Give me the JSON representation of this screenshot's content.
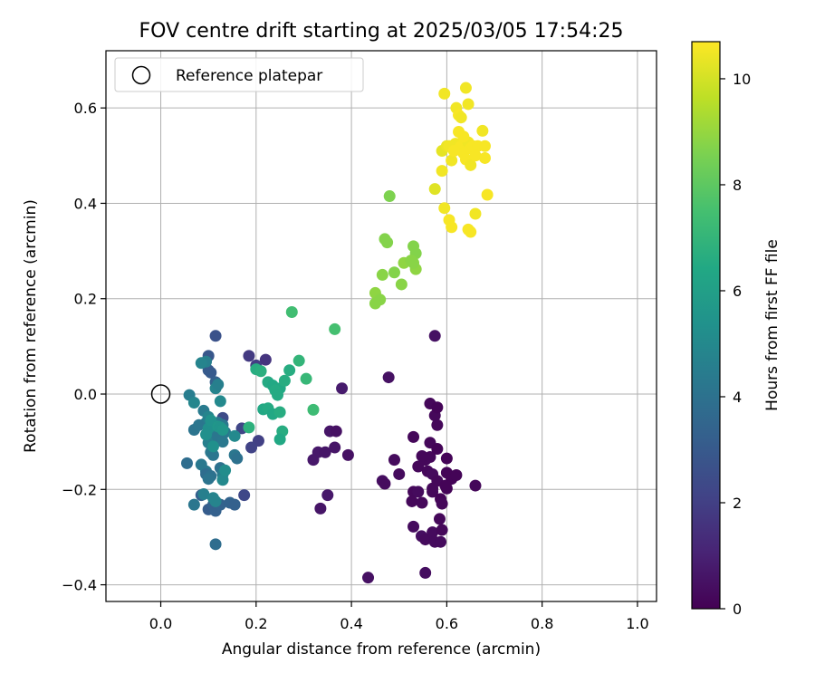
{
  "chart_data": {
    "type": "scatter",
    "title": "FOV centre drift starting at 2025/03/05 17:54:25",
    "xlabel": "Angular distance from reference (arcmin)",
    "ylabel": "Rotation from reference (arcmin)",
    "xlim": [
      -0.115,
      1.04
    ],
    "ylim": [
      -0.435,
      0.72
    ],
    "xticks": [
      0.0,
      0.2,
      0.4,
      0.6,
      0.8,
      1.0
    ],
    "xtick_labels": [
      "0.0",
      "0.2",
      "0.4",
      "0.6",
      "0.8",
      "1.0"
    ],
    "yticks": [
      -0.4,
      -0.2,
      0.0,
      0.2,
      0.4,
      0.6
    ],
    "ytick_labels": [
      "−0.4",
      "−0.2",
      "0.0",
      "0.2",
      "0.4",
      "0.6"
    ],
    "grid": true,
    "legend": {
      "placement": "top-left",
      "entries": [
        {
          "label": "Reference platepar",
          "marker": "open-circle"
        }
      ]
    },
    "reference_point": {
      "x": 0.0,
      "y": 0.0
    },
    "colorbar": {
      "label": "Hours from first FF file",
      "colormap": "viridis",
      "range": [
        0,
        10.7
      ],
      "ticks": [
        0,
        2,
        4,
        6,
        8,
        10
      ],
      "tick_labels": [
        "0",
        "2",
        "4",
        "6",
        "8",
        "10"
      ]
    },
    "series": [
      {
        "points": [
          [
            0.575,
            0.122,
            0.5
          ],
          [
            0.478,
            0.035,
            0.5
          ],
          [
            0.38,
            0.012,
            0.8
          ],
          [
            0.355,
            -0.078,
            0.6
          ],
          [
            0.368,
            -0.078,
            0.5
          ],
          [
            0.393,
            -0.128,
            0.5
          ],
          [
            0.365,
            -0.112,
            0.6
          ],
          [
            0.33,
            -0.122,
            0.7
          ],
          [
            0.345,
            -0.122,
            0.6
          ],
          [
            0.32,
            -0.138,
            0.7
          ],
          [
            0.35,
            -0.212,
            0.7
          ],
          [
            0.335,
            -0.24,
            0.6
          ],
          [
            0.435,
            -0.385,
            0.5
          ],
          [
            0.465,
            -0.182,
            0.4
          ],
          [
            0.47,
            -0.188,
            0.3
          ],
          [
            0.49,
            -0.138,
            0.3
          ],
          [
            0.5,
            -0.168,
            0.3
          ],
          [
            0.53,
            -0.09,
            0.2
          ],
          [
            0.54,
            -0.152,
            0.2
          ],
          [
            0.53,
            -0.205,
            0.2
          ],
          [
            0.527,
            -0.225,
            0.2
          ],
          [
            0.54,
            -0.205,
            0.3
          ],
          [
            0.53,
            -0.278,
            0.3
          ],
          [
            0.547,
            -0.298,
            0.4
          ],
          [
            0.555,
            -0.305,
            0.3
          ],
          [
            0.555,
            -0.375,
            0.4
          ],
          [
            0.565,
            -0.02,
            0.2
          ],
          [
            0.555,
            -0.138,
            0.2
          ],
          [
            0.565,
            -0.132,
            0.2
          ],
          [
            0.56,
            -0.162,
            0.2
          ],
          [
            0.565,
            -0.102,
            0.2
          ],
          [
            0.57,
            -0.168,
            0.3
          ],
          [
            0.57,
            -0.205,
            0.2
          ],
          [
            0.57,
            -0.198,
            0.2
          ],
          [
            0.57,
            -0.29,
            0.3
          ],
          [
            0.575,
            -0.31,
            0.3
          ],
          [
            0.575,
            -0.045,
            0.2
          ],
          [
            0.58,
            -0.028,
            0.1
          ],
          [
            0.58,
            -0.065,
            0.2
          ],
          [
            0.58,
            -0.115,
            0.1
          ],
          [
            0.58,
            -0.182,
            0.2
          ],
          [
            0.587,
            -0.22,
            0.1
          ],
          [
            0.585,
            -0.262,
            0.2
          ],
          [
            0.587,
            -0.31,
            0.3
          ],
          [
            0.59,
            -0.23,
            0.2
          ],
          [
            0.59,
            -0.285,
            0.2
          ],
          [
            0.6,
            -0.135,
            0.1
          ],
          [
            0.6,
            -0.165,
            0.1
          ],
          [
            0.6,
            -0.198,
            0.1
          ],
          [
            0.61,
            -0.178,
            0.1
          ],
          [
            0.62,
            -0.17,
            0.1
          ],
          [
            0.66,
            -0.192,
            0.2
          ],
          [
            0.597,
            -0.192,
            0.1
          ],
          [
            0.548,
            -0.228,
            0.2
          ],
          [
            0.548,
            -0.13,
            0.2
          ],
          [
            0.185,
            0.08,
            1.8
          ],
          [
            0.22,
            0.072,
            1.6
          ],
          [
            0.2,
            0.06,
            1.9
          ],
          [
            0.205,
            -0.098,
            2.0
          ],
          [
            0.19,
            -0.112,
            2.1
          ],
          [
            0.17,
            -0.072,
            2.2
          ],
          [
            0.13,
            -0.05,
            2.4
          ],
          [
            0.175,
            -0.212,
            2.3
          ],
          [
            0.115,
            0.122,
            2.7
          ],
          [
            0.1,
            0.08,
            2.9
          ],
          [
            0.1,
            0.05,
            3.0
          ],
          [
            0.105,
            0.045,
            3.0
          ],
          [
            0.115,
            0.025,
            3.3
          ],
          [
            0.085,
            -0.212,
            3.2
          ],
          [
            0.1,
            -0.242,
            3.1
          ],
          [
            0.11,
            -0.232,
            3.3
          ],
          [
            0.115,
            -0.245,
            3.3
          ],
          [
            0.125,
            -0.232,
            3.4
          ],
          [
            0.145,
            -0.228,
            3.4
          ],
          [
            0.155,
            -0.232,
            3.3
          ],
          [
            0.115,
            -0.315,
            3.8
          ],
          [
            0.095,
            0.068,
            4.6
          ],
          [
            0.085,
            0.065,
            4.8
          ],
          [
            0.06,
            -0.002,
            4.5
          ],
          [
            0.07,
            -0.018,
            4.9
          ],
          [
            0.115,
            0.012,
            4.8
          ],
          [
            0.125,
            -0.015,
            5.0
          ],
          [
            0.12,
            0.02,
            4.6
          ],
          [
            0.09,
            -0.035,
            4.4
          ],
          [
            0.1,
            -0.048,
            4.8
          ],
          [
            0.095,
            -0.06,
            4.5
          ],
          [
            0.07,
            -0.075,
            4.1
          ],
          [
            0.08,
            -0.065,
            4.2
          ],
          [
            0.105,
            -0.08,
            4.3
          ],
          [
            0.11,
            -0.092,
            4.4
          ],
          [
            0.1,
            -0.102,
            4.6
          ],
          [
            0.105,
            -0.122,
            4.3
          ],
          [
            0.11,
            -0.128,
            4.2
          ],
          [
            0.12,
            -0.06,
            4.3
          ],
          [
            0.13,
            -0.065,
            4.3
          ],
          [
            0.135,
            -0.08,
            4.3
          ],
          [
            0.12,
            -0.09,
            4.2
          ],
          [
            0.13,
            -0.1,
            4.3
          ],
          [
            0.085,
            -0.148,
            4.3
          ],
          [
            0.095,
            -0.162,
            4.3
          ],
          [
            0.095,
            -0.168,
            3.8
          ],
          [
            0.105,
            -0.172,
            4.0
          ],
          [
            0.1,
            -0.178,
            4.1
          ],
          [
            0.125,
            -0.155,
            4.0
          ],
          [
            0.13,
            -0.168,
            4.4
          ],
          [
            0.155,
            -0.128,
            4.2
          ],
          [
            0.16,
            -0.135,
            4.0
          ],
          [
            0.055,
            -0.145,
            3.8
          ],
          [
            0.07,
            -0.232,
            4.2
          ],
          [
            0.09,
            -0.21,
            4.6
          ],
          [
            0.11,
            -0.218,
            4.8
          ],
          [
            0.115,
            -0.225,
            4.8
          ],
          [
            0.13,
            -0.18,
            5.0
          ],
          [
            0.135,
            -0.16,
            5.2
          ],
          [
            0.155,
            -0.088,
            5.0
          ],
          [
            0.1,
            -0.072,
            5.3
          ],
          [
            0.105,
            -0.055,
            5.4
          ],
          [
            0.12,
            -0.068,
            5.6
          ],
          [
            0.125,
            -0.07,
            5.5
          ],
          [
            0.13,
            -0.075,
            5.6
          ],
          [
            0.11,
            -0.11,
            5.3
          ],
          [
            0.095,
            -0.085,
            5.3
          ],
          [
            0.2,
            0.052,
            6.6
          ],
          [
            0.21,
            0.048,
            6.7
          ],
          [
            0.225,
            0.025,
            6.5
          ],
          [
            0.235,
            0.018,
            6.4
          ],
          [
            0.25,
            0.012,
            6.4
          ],
          [
            0.24,
            0.008,
            6.5
          ],
          [
            0.245,
            -0.002,
            6.5
          ],
          [
            0.26,
            0.028,
            6.6
          ],
          [
            0.27,
            0.05,
            6.6
          ],
          [
            0.215,
            -0.032,
            6.4
          ],
          [
            0.225,
            -0.03,
            6.5
          ],
          [
            0.235,
            -0.042,
            6.4
          ],
          [
            0.25,
            -0.038,
            6.6
          ],
          [
            0.255,
            -0.078,
            6.6
          ],
          [
            0.25,
            -0.095,
            6.4
          ],
          [
            0.185,
            -0.07,
            6.8
          ],
          [
            0.29,
            0.07,
            7.0
          ],
          [
            0.305,
            0.032,
            7.1
          ],
          [
            0.32,
            -0.033,
            7.3
          ],
          [
            0.275,
            0.172,
            7.4
          ],
          [
            0.365,
            0.136,
            7.5
          ],
          [
            0.48,
            0.415,
            8.6
          ],
          [
            0.47,
            0.325,
            8.7
          ],
          [
            0.475,
            0.318,
            8.7
          ],
          [
            0.465,
            0.25,
            8.8
          ],
          [
            0.45,
            0.212,
            8.9
          ],
          [
            0.455,
            0.198,
            8.9
          ],
          [
            0.46,
            0.198,
            8.8
          ],
          [
            0.45,
            0.19,
            8.8
          ],
          [
            0.49,
            0.255,
            8.7
          ],
          [
            0.505,
            0.23,
            8.8
          ],
          [
            0.51,
            0.275,
            8.9
          ],
          [
            0.53,
            0.31,
            8.7
          ],
          [
            0.535,
            0.295,
            8.7
          ],
          [
            0.525,
            0.28,
            8.8
          ],
          [
            0.535,
            0.262,
            8.9
          ],
          [
            0.53,
            0.275,
            8.8
          ],
          [
            0.575,
            0.43,
            10.2
          ],
          [
            0.59,
            0.51,
            10.3
          ],
          [
            0.6,
            0.52,
            10.4
          ],
          [
            0.61,
            0.49,
            10.5
          ],
          [
            0.605,
            0.365,
            10.6
          ],
          [
            0.61,
            0.35,
            10.6
          ],
          [
            0.595,
            0.39,
            10.5
          ],
          [
            0.59,
            0.468,
            10.5
          ],
          [
            0.595,
            0.63,
            10.5
          ],
          [
            0.618,
            0.525,
            10.5
          ],
          [
            0.625,
            0.55,
            10.6
          ],
          [
            0.62,
            0.6,
            10.5
          ],
          [
            0.625,
            0.585,
            10.6
          ],
          [
            0.63,
            0.58,
            10.5
          ],
          [
            0.63,
            0.52,
            10.6
          ],
          [
            0.635,
            0.505,
            10.6
          ],
          [
            0.64,
            0.492,
            10.6
          ],
          [
            0.645,
            0.528,
            10.5
          ],
          [
            0.64,
            0.642,
            10.5
          ],
          [
            0.645,
            0.608,
            10.5
          ],
          [
            0.65,
            0.515,
            10.6
          ],
          [
            0.65,
            0.48,
            10.5
          ],
          [
            0.655,
            0.52,
            10.6
          ],
          [
            0.665,
            0.52,
            10.6
          ],
          [
            0.66,
            0.5,
            10.6
          ],
          [
            0.66,
            0.378,
            10.5
          ],
          [
            0.645,
            0.345,
            10.6
          ],
          [
            0.65,
            0.34,
            10.6
          ],
          [
            0.675,
            0.552,
            10.5
          ],
          [
            0.68,
            0.52,
            10.6
          ],
          [
            0.68,
            0.495,
            10.6
          ],
          [
            0.685,
            0.418,
            10.6
          ],
          [
            0.635,
            0.54,
            10.6
          ],
          [
            0.605,
            0.52,
            10.5
          ],
          [
            0.615,
            0.51,
            10.6
          ]
        ]
      }
    ]
  }
}
